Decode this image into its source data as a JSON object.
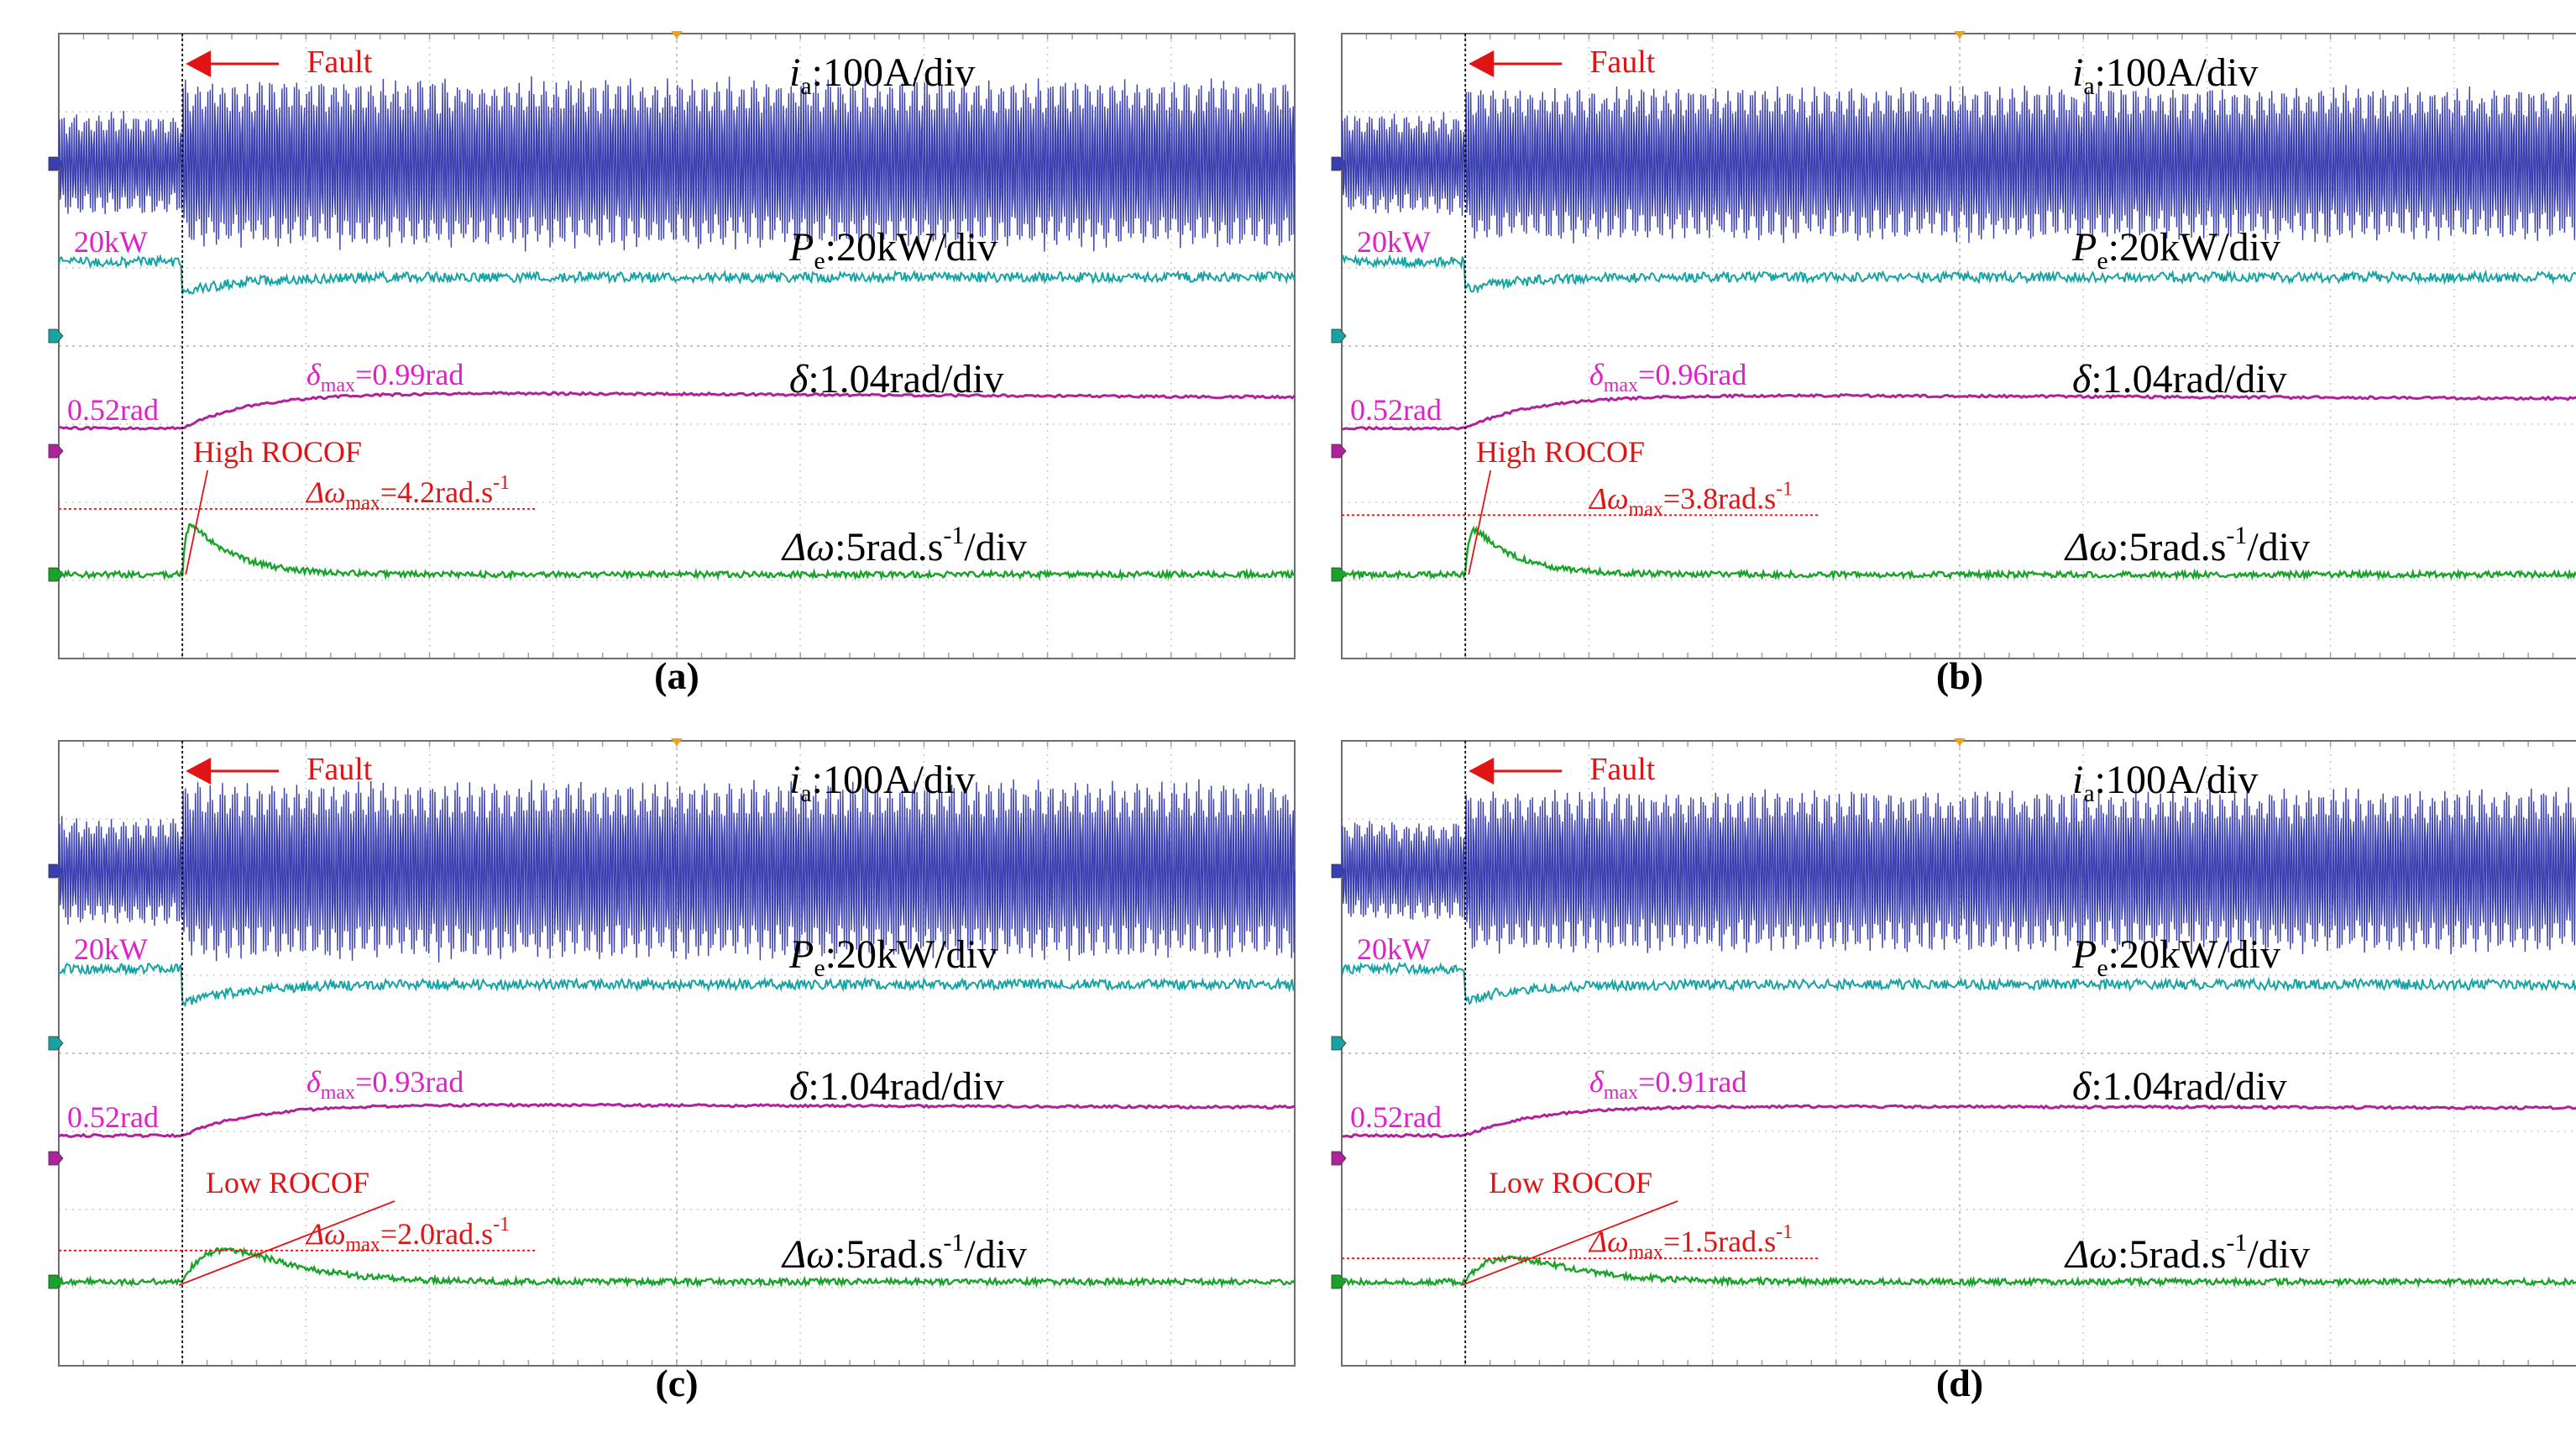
{
  "colors": {
    "current": "#3a3fb0",
    "power": "#17a3a3",
    "angle": "#b0229c",
    "frequency": "#1aa32a",
    "annotation": "#e01414",
    "label": "#e020c8",
    "grid": "#c8c8c8",
    "frame": "#6e6e6e",
    "fault_line": "#000000",
    "marker_orange": "#f0a020"
  },
  "legend": {
    "ia_var": "i",
    "ia_sub": "a",
    "ia_scale": ":100A/div",
    "pe_var": "P",
    "pe_sub": "e",
    "pe_scale": ":20kW/div",
    "delta_var": "δ",
    "delta_scale": ":1.04rad/div",
    "dw_var": "Δω",
    "dw_scale_pre": ":5rad.s",
    "dw_scale_sup": "-1",
    "dw_scale_post": "/div"
  },
  "chart_data": [
    {
      "type": "line",
      "panel": "(a)",
      "fault_label": "Fault",
      "fault_time_div": 1.0,
      "grid_divisions": {
        "x": 10,
        "y": 8
      },
      "time_range_div": [
        0,
        10
      ],
      "pe_level_label": "20kW",
      "delta_level_label": "0.52rad",
      "delta_max_label": {
        "sym": "δ",
        "sub": "max",
        "val": "=0.99rad"
      },
      "rocof_label": "High ROCOF",
      "dw_max_label": {
        "sym": "Δω",
        "sub": "max",
        "val": "=4.2rad.s",
        "sup": "-1"
      },
      "series": [
        {
          "name": "ia",
          "unit": "A",
          "scale_per_div": 100,
          "amplitude_pre_A": 65,
          "amplitude_post_A": 110
        },
        {
          "name": "Pe",
          "unit": "kW",
          "scale_per_div": 20,
          "pre_kW": 20,
          "dip_kW": 12,
          "post_kW": 16
        },
        {
          "name": "delta",
          "unit": "rad",
          "scale_per_div": 1.04,
          "pre_rad": 0.52,
          "max_rad": 0.99,
          "final_rad": 0.94
        },
        {
          "name": "dw",
          "unit": "rad/s",
          "scale_per_div": 5,
          "pre": 0,
          "max": 4.2,
          "final": 0
        }
      ]
    },
    {
      "type": "line",
      "panel": "(b)",
      "fault_label": "Fault",
      "fault_time_div": 1.0,
      "grid_divisions": {
        "x": 10,
        "y": 8
      },
      "time_range_div": [
        0,
        10
      ],
      "pe_level_label": "20kW",
      "delta_level_label": "0.52rad",
      "delta_max_label": {
        "sym": "δ",
        "sub": "max",
        "val": "=0.96rad"
      },
      "rocof_label": "High ROCOF",
      "dw_max_label": {
        "sym": "Δω",
        "sub": "max",
        "val": "=3.8rad.s",
        "sup": "-1"
      },
      "series": [
        {
          "name": "ia",
          "unit": "A",
          "scale_per_div": 100,
          "amplitude_pre_A": 65,
          "amplitude_post_A": 100
        },
        {
          "name": "Pe",
          "unit": "kW",
          "scale_per_div": 20,
          "pre_kW": 20,
          "dip_kW": 13,
          "post_kW": 16
        },
        {
          "name": "delta",
          "unit": "rad",
          "scale_per_div": 1.04,
          "pre_rad": 0.52,
          "max_rad": 0.96,
          "final_rad": 0.92
        },
        {
          "name": "dw",
          "unit": "rad/s",
          "scale_per_div": 5,
          "pre": 0,
          "max": 3.8,
          "final": 0
        }
      ]
    },
    {
      "type": "line",
      "panel": "(c)",
      "fault_label": "Fault",
      "fault_time_div": 1.0,
      "grid_divisions": {
        "x": 10,
        "y": 8
      },
      "time_range_div": [
        0,
        10
      ],
      "pe_level_label": "20kW",
      "delta_level_label": "0.52rad",
      "delta_max_label": {
        "sym": "δ",
        "sub": "max",
        "val": "=0.93rad"
      },
      "rocof_label": "Low ROCOF",
      "dw_max_label": {
        "sym": "Δω",
        "sub": "max",
        "val": "=2.0rad.s",
        "sup": "-1"
      },
      "series": [
        {
          "name": "ia",
          "unit": "A",
          "scale_per_div": 100,
          "amplitude_pre_A": 70,
          "amplitude_post_A": 115
        },
        {
          "name": "Pe",
          "unit": "kW",
          "scale_per_div": 20,
          "pre_kW": 20,
          "dip_kW": 11,
          "post_kW": 16
        },
        {
          "name": "delta",
          "unit": "rad",
          "scale_per_div": 1.04,
          "pre_rad": 0.52,
          "max_rad": 0.93,
          "final_rad": 0.9
        },
        {
          "name": "dw",
          "unit": "rad/s",
          "scale_per_div": 5,
          "pre": 0,
          "max": 2.0,
          "final": 0
        }
      ]
    },
    {
      "type": "line",
      "panel": "(d)",
      "fault_label": "Fault",
      "fault_time_div": 1.0,
      "grid_divisions": {
        "x": 10,
        "y": 8
      },
      "time_range_div": [
        0,
        10
      ],
      "pe_level_label": "20kW",
      "delta_level_label": "0.52rad",
      "delta_max_label": {
        "sym": "δ",
        "sub": "max",
        "val": "=0.91rad"
      },
      "rocof_label": "Low ROCOF",
      "dw_max_label": {
        "sym": "Δω",
        "sub": "max",
        "val": "=1.5rad.s",
        "sup": "-1"
      },
      "series": [
        {
          "name": "ia",
          "unit": "A",
          "scale_per_div": 100,
          "amplitude_pre_A": 65,
          "amplitude_post_A": 105
        },
        {
          "name": "Pe",
          "unit": "kW",
          "scale_per_div": 20,
          "pre_kW": 20,
          "dip_kW": 12,
          "post_kW": 16
        },
        {
          "name": "delta",
          "unit": "rad",
          "scale_per_div": 1.04,
          "pre_rad": 0.52,
          "max_rad": 0.91,
          "final_rad": 0.89
        },
        {
          "name": "dw",
          "unit": "rad/s",
          "scale_per_div": 5,
          "pre": 0,
          "max": 1.5,
          "final": 0
        }
      ]
    }
  ]
}
